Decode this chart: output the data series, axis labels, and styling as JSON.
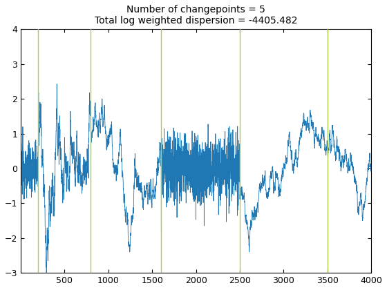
{
  "title_line1": "Number of changepoints = 5",
  "title_line2": "Total log weighted dispersion = -4405.482",
  "title_fontsize": 10,
  "n_points": 4000,
  "changepoints": [
    200,
    800,
    1600,
    2500,
    3500
  ],
  "segment_stds": [
    0.25,
    0.8,
    0.95,
    0.25,
    0.7,
    0.4
  ],
  "segment_cumsum": [
    false,
    true,
    true,
    false,
    true,
    true
  ],
  "signal_color": "#1f77b4",
  "vline_color": "#aacc55",
  "vline_linewidth": 1.0,
  "signal_linewidth": 0.6,
  "xlim": [
    1,
    4000
  ],
  "ylim": [
    -3,
    4
  ],
  "xticks": [
    500,
    1000,
    1500,
    2000,
    2500,
    3000,
    3500,
    4000
  ],
  "yticks": [
    -3,
    -2,
    -1,
    0,
    1,
    2,
    3,
    4
  ],
  "random_seed": 12345
}
